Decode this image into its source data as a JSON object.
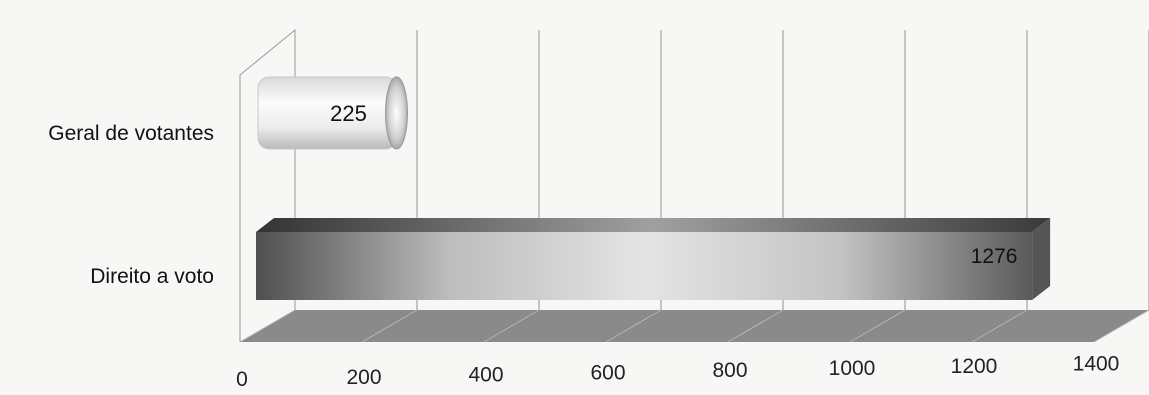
{
  "chart_data": {
    "type": "bar",
    "orientation": "horizontal",
    "style": "3d",
    "categories": [
      "Geral de votantes",
      "Direito a voto"
    ],
    "values": [
      225,
      1276
    ],
    "data_labels": [
      "225",
      "1276"
    ],
    "x_ticks": [
      0,
      200,
      400,
      600,
      800,
      1000,
      1200,
      1400
    ],
    "x_tick_labels": [
      "0",
      "200",
      "400",
      "600",
      "800",
      "1000",
      "1200",
      "1400"
    ],
    "xlim": [
      0,
      1400
    ],
    "grid": true,
    "legend": "none",
    "title": "",
    "xlabel": "",
    "ylabel": "",
    "bar_shapes": [
      "cylinder",
      "box"
    ],
    "colors": {
      "cylinder_light": "#f2f2f2",
      "cylinder_dark": "#bdbdbd",
      "box_dark": "#555555",
      "box_light": "#d6d6d6",
      "floor": "#8a8a8a",
      "grid": "#a8a8a8"
    }
  }
}
